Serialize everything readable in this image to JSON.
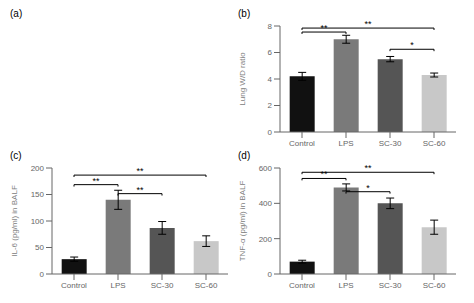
{
  "chart_data": [
    {
      "type": "blank",
      "title": "(a)"
    },
    {
      "type": "bar",
      "title": "(b)",
      "categories": [
        "Control",
        "LPS",
        "SC-30",
        "SC-60"
      ],
      "values": [
        4.2,
        7.0,
        5.5,
        4.3
      ],
      "errors": [
        0.3,
        0.3,
        0.2,
        0.15
      ],
      "colors": [
        "#111111",
        "#7a7a7a",
        "#555555",
        "#c8c8c8"
      ],
      "ylabel": "Lung W/D ratio",
      "ylim": [
        0,
        8
      ],
      "yticks": [
        0,
        2,
        4,
        6,
        8
      ],
      "annotations": [
        {
          "text": "**",
          "from": "Control",
          "to": "LPS",
          "y": 7.4
        },
        {
          "text": "*",
          "from": "SC-30",
          "to": "SC-60",
          "y": 6.1
        },
        {
          "text": "**",
          "from": "Control",
          "to": "SC-60",
          "y": 7.7
        }
      ]
    },
    {
      "type": "bar",
      "title": "(c)",
      "categories": [
        "Control",
        "LPS",
        "SC-30",
        "SC-60"
      ],
      "values": [
        28,
        140,
        87,
        62
      ],
      "errors": [
        4,
        18,
        12,
        10
      ],
      "colors": [
        "#111111",
        "#7a7a7a",
        "#555555",
        "#c8c8c8"
      ],
      "ylabel": "IL-6 (pg/ml)  in BALF",
      "ylim": [
        0,
        200
      ],
      "yticks": [
        0,
        50,
        100,
        150,
        200
      ],
      "annotations": [
        {
          "text": "**",
          "from": "Control",
          "to": "LPS",
          "y": 165
        },
        {
          "text": "**",
          "from": "LPS",
          "to": "SC-30",
          "y": 148
        },
        {
          "text": "**",
          "from": "Control",
          "to": "SC-60",
          "y": 183
        }
      ]
    },
    {
      "type": "bar",
      "title": "(d)",
      "categories": [
        "Control",
        "LPS",
        "SC-30",
        "SC-60"
      ],
      "values": [
        70,
        490,
        400,
        265
      ],
      "errors": [
        8,
        20,
        30,
        40
      ],
      "colors": [
        "#111111",
        "#7a7a7a",
        "#555555",
        "#c8c8c8"
      ],
      "ylabel": "TNF-α (pg/ml)  in BALF",
      "ylim": [
        0,
        600
      ],
      "yticks": [
        0,
        200,
        400,
        600
      ],
      "annotations": [
        {
          "text": "**",
          "from": "Control",
          "to": "LPS",
          "y": 530
        },
        {
          "text": "*",
          "from": "LPS",
          "to": "SC-30",
          "y": 455
        },
        {
          "text": "**",
          "from": "Control",
          "to": "SC-60",
          "y": 565
        }
      ]
    }
  ]
}
